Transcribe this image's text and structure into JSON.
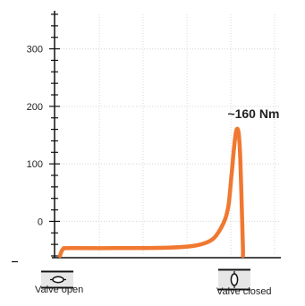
{
  "chart_data": {
    "type": "line",
    "title": "",
    "xlabel": "",
    "ylabel": "",
    "y_tick_labels": [
      "300",
      "200",
      "100",
      "0"
    ],
    "y_tick_values": [
      300,
      200,
      100,
      0
    ],
    "ylim": [
      -60,
      360
    ],
    "xlim": [
      0,
      100
    ],
    "grid": true,
    "series": [
      {
        "color": "#f07830",
        "x": [
          0,
          1.5,
          5,
          30,
          50,
          60,
          66,
          70,
          73,
          75.5,
          77,
          78.3,
          79.5,
          80.5,
          81.5,
          82.3,
          83,
          83.5,
          83.5
        ],
        "y": [
          -60,
          -48,
          -46.5,
          -46.5,
          -45.5,
          -43,
          -38,
          -30,
          -15,
          5,
          30,
          80,
          130,
          158,
          155,
          110,
          20,
          -45,
          -60
        ]
      }
    ],
    "annotations": [
      {
        "text": "~160 Nm",
        "x": 81,
        "y": 160
      }
    ]
  },
  "valves": {
    "open_label": "Valve open",
    "closed_label": "Valve closed"
  },
  "colors": {
    "series": "#f07830",
    "axis": "#111111",
    "grid": "#d8d8d8",
    "icon_bg": "#e6e6e6"
  }
}
